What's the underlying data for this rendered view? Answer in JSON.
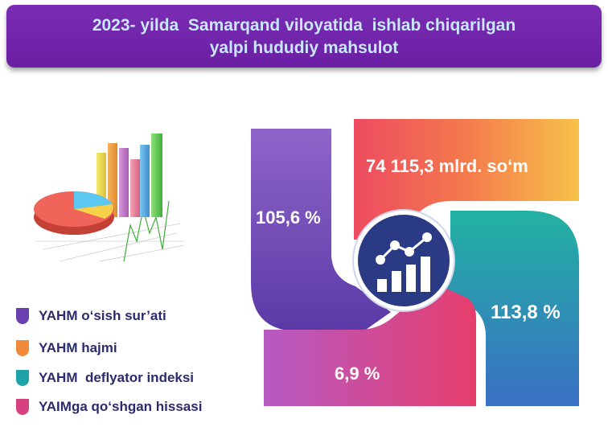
{
  "header": {
    "title_line1": "2023- yilda  Samarqand viloyatida  ishlab chiqarilgan",
    "title_line2": "yalpi hududiy mahsulot"
  },
  "legend": [
    {
      "label": "YAHM o‘sish sur’ati",
      "color": "#6a3fb0"
    },
    {
      "label": "YAHM hajmi",
      "color": "#f08a3a"
    },
    {
      "label": "YAHM  deflyator indeksi",
      "color": "#1fa3a8"
    },
    {
      "label": "YAIMga qo‘shgan hissasi",
      "color": "#d6407e"
    }
  ],
  "values": {
    "growth_rate": "105,6 %",
    "volume": "74 115,3 mlrd. so‘m",
    "deflator_index": "113,8 %",
    "share": "6,9 %"
  },
  "colors": {
    "banner": "#6a1fa3",
    "title_text": "#c8e8ff",
    "legend_text": "#2b2b6e",
    "center": "#2a3a84"
  },
  "icons": {
    "center": "chart-growth-icon",
    "illustration": "bar-pie-chart-illustration"
  }
}
